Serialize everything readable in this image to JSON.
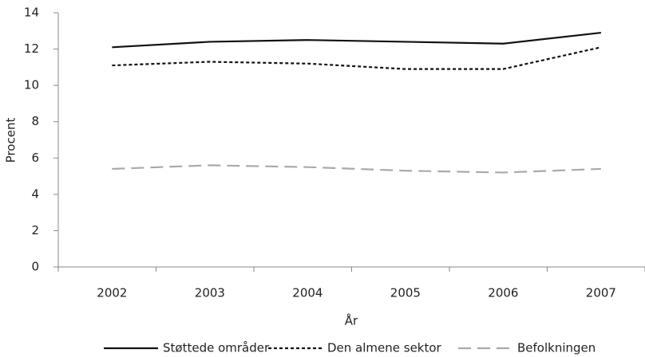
{
  "chart_data": {
    "type": "line",
    "xlabel": "År",
    "ylabel": "Procent",
    "categories": [
      "2002",
      "2003",
      "2004",
      "2005",
      "2006",
      "2007"
    ],
    "series": [
      {
        "name": "Støttede områder",
        "color": "#111111",
        "dash": "solid",
        "values": [
          12.1,
          12.4,
          12.5,
          12.4,
          12.3,
          12.9
        ]
      },
      {
        "name": "Den almene sektor",
        "color": "#111111",
        "dash": "short",
        "values": [
          11.1,
          11.3,
          11.2,
          10.9,
          10.9,
          12.1
        ]
      },
      {
        "name": "Befolkningen",
        "color": "#aaaaaa",
        "dash": "long",
        "values": [
          5.4,
          5.6,
          5.5,
          5.3,
          5.2,
          5.4
        ]
      }
    ],
    "ylim": [
      0,
      14
    ],
    "yticks": [
      0,
      2,
      4,
      6,
      8,
      10,
      12,
      14
    ],
    "grid": false,
    "legend": "bottom"
  }
}
